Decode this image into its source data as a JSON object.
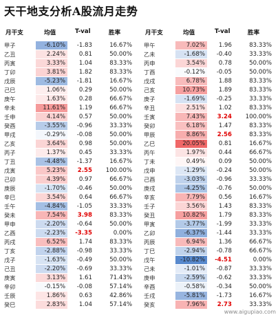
{
  "title": "天干地支分析A股流月走势",
  "headers": {
    "name": "月干支",
    "mean": "均值",
    "tval": "T-val",
    "win": "胜率"
  },
  "colors": {
    "pos_max": "#ef5a5a",
    "neg_max": "#4a7fc9",
    "highlight_text": "#e00000"
  },
  "watermark": "www.aigupiao.com",
  "chart_data": {
    "type": "table",
    "columns": [
      "月干支",
      "均值",
      "T-val",
      "胜率"
    ],
    "panels": [
      {
        "rows": [
          {
            "name": "甲子",
            "mean": "-6.10%",
            "mean_value": -6.1,
            "tval": "-1.83",
            "tval_value": -1.83,
            "win": "16.67%"
          },
          {
            "name": "乙丑",
            "mean": "2.24%",
            "mean_value": 2.24,
            "tval": "0.81",
            "tval_value": 0.81,
            "win": "50.00%"
          },
          {
            "name": "丙寅",
            "mean": "3.33%",
            "mean_value": 3.33,
            "tval": "1.04",
            "tval_value": 1.04,
            "win": "83.33%"
          },
          {
            "name": "丁卯",
            "mean": "3.81%",
            "mean_value": 3.81,
            "tval": "1.82",
            "tval_value": 1.82,
            "win": "83.33%"
          },
          {
            "name": "戊辰",
            "mean": "-5.23%",
            "mean_value": -5.23,
            "tval": "-1.81",
            "tval_value": -1.81,
            "win": "16.67%"
          },
          {
            "name": "己巳",
            "mean": "1.06%",
            "mean_value": 1.06,
            "tval": "0.29",
            "tval_value": 0.29,
            "win": "50.00%"
          },
          {
            "name": "庚午",
            "mean": "1.63%",
            "mean_value": 1.63,
            "tval": "0.28",
            "tval_value": 0.28,
            "win": "66.67%"
          },
          {
            "name": "辛未",
            "mean": "11.61%",
            "mean_value": 11.61,
            "tval": "1.19",
            "tval_value": 1.19,
            "win": "66.67%"
          },
          {
            "name": "壬申",
            "mean": "4.14%",
            "mean_value": 4.14,
            "tval": "0.57",
            "tval_value": 0.57,
            "win": "50.00%"
          },
          {
            "name": "癸酉",
            "mean": "-3.55%",
            "mean_value": -3.55,
            "tval": "-0.96",
            "tval_value": -0.96,
            "win": "33.33%"
          },
          {
            "name": "甲戌",
            "mean": "-0.29%",
            "mean_value": -0.29,
            "tval": "-0.08",
            "tval_value": -0.08,
            "win": "50.00%"
          },
          {
            "name": "乙亥",
            "mean": "3.64%",
            "mean_value": 3.64,
            "tval": "0.98",
            "tval_value": 0.98,
            "win": "50.00%"
          },
          {
            "name": "丙子",
            "mean": "1.37%",
            "mean_value": 1.37,
            "tval": "0.45",
            "tval_value": 0.45,
            "win": "33.33%"
          },
          {
            "name": "丁丑",
            "mean": "-4.48%",
            "mean_value": -4.48,
            "tval": "-1.37",
            "tval_value": -1.37,
            "win": "16.67%"
          },
          {
            "name": "戊寅",
            "mean": "5.23%",
            "mean_value": 5.23,
            "tval": "2.55",
            "tval_value": 2.55,
            "win": "100.00%"
          },
          {
            "name": "己卯",
            "mean": "4.39%",
            "mean_value": 4.39,
            "tval": "0.97",
            "tval_value": 0.97,
            "win": "66.67%"
          },
          {
            "name": "庚辰",
            "mean": "-1.70%",
            "mean_value": -1.7,
            "tval": "-0.46",
            "tval_value": -0.46,
            "win": "50.00%"
          },
          {
            "name": "辛巳",
            "mean": "3.54%",
            "mean_value": 3.54,
            "tval": "0.64",
            "tval_value": 0.64,
            "win": "66.67%"
          },
          {
            "name": "壬午",
            "mean": "-4.84%",
            "mean_value": -4.84,
            "tval": "-1.05",
            "tval_value": -1.05,
            "win": "33.33%"
          },
          {
            "name": "癸未",
            "mean": "7.54%",
            "mean_value": 7.54,
            "tval": "3.98",
            "tval_value": 3.98,
            "win": "83.33%"
          },
          {
            "name": "甲申",
            "mean": "-2.20%",
            "mean_value": -2.2,
            "tval": "-0.64",
            "tval_value": -0.64,
            "win": "50.00%"
          },
          {
            "name": "乙酉",
            "mean": "-2.23%",
            "mean_value": -2.23,
            "tval": "-3.35",
            "tval_value": -3.35,
            "win": "0.00%"
          },
          {
            "name": "丙戌",
            "mean": "6.52%",
            "mean_value": 6.52,
            "tval": "1.74",
            "tval_value": 1.74,
            "win": "83.33%"
          },
          {
            "name": "丁亥",
            "mean": "-2.88%",
            "mean_value": -2.88,
            "tval": "-0.98",
            "tval_value": -0.98,
            "win": "33.33%"
          },
          {
            "name": "戊子",
            "mean": "-1.63%",
            "mean_value": -1.63,
            "tval": "-0.49",
            "tval_value": -0.49,
            "win": "50.00%"
          },
          {
            "name": "己丑",
            "mean": "-2.20%",
            "mean_value": -2.2,
            "tval": "-0.69",
            "tval_value": -0.69,
            "win": "33.33%"
          },
          {
            "name": "庚寅",
            "mean": "3.13%",
            "mean_value": 3.13,
            "tval": "1.61",
            "tval_value": 1.61,
            "win": "71.43%"
          },
          {
            "name": "辛卯",
            "mean": "-0.15%",
            "mean_value": -0.15,
            "tval": "-0.08",
            "tval_value": -0.08,
            "win": "57.14%"
          },
          {
            "name": "壬辰",
            "mean": "1.86%",
            "mean_value": 1.86,
            "tval": "0.63",
            "tval_value": 0.63,
            "win": "42.86%"
          },
          {
            "name": "癸巳",
            "mean": "2.83%",
            "mean_value": 2.83,
            "tval": "1.04",
            "tval_value": 1.04,
            "win": "57.14%"
          }
        ]
      },
      {
        "rows": [
          {
            "name": "甲午",
            "mean": "7.02%",
            "mean_value": 7.02,
            "tval": "1.96",
            "tval_value": 1.96,
            "win": "83.33%"
          },
          {
            "name": "乙未",
            "mean": "-1.68%",
            "mean_value": -1.68,
            "tval": "-0.40",
            "tval_value": -0.4,
            "win": "33.33%"
          },
          {
            "name": "丙申",
            "mean": "3.54%",
            "mean_value": 3.54,
            "tval": "0.78",
            "tval_value": 0.78,
            "win": "50.00%"
          },
          {
            "name": "丁酉",
            "mean": "-0.12%",
            "mean_value": -0.12,
            "tval": "-0.05",
            "tval_value": -0.05,
            "win": "50.00%"
          },
          {
            "name": "戊戌",
            "mean": "6.78%",
            "mean_value": 6.78,
            "tval": "1.88",
            "tval_value": 1.88,
            "win": "83.33%"
          },
          {
            "name": "己亥",
            "mean": "10.73%",
            "mean_value": 10.73,
            "tval": "1.89",
            "tval_value": 1.89,
            "win": "83.33%"
          },
          {
            "name": "庚子",
            "mean": "-1.69%",
            "mean_value": -1.69,
            "tval": "-0.25",
            "tval_value": -0.25,
            "win": "33.33%"
          },
          {
            "name": "辛丑",
            "mean": "2.51%",
            "mean_value": 2.51,
            "tval": "1.02",
            "tval_value": 1.02,
            "win": "83.33%"
          },
          {
            "name": "壬寅",
            "mean": "7.43%",
            "mean_value": 7.43,
            "tval": "3.24",
            "tval_value": 3.24,
            "win": "100.00%"
          },
          {
            "name": "癸卯",
            "mean": "6.18%",
            "mean_value": 6.18,
            "tval": "1.47",
            "tval_value": 1.47,
            "win": "83.33%"
          },
          {
            "name": "甲辰",
            "mean": "8.86%",
            "mean_value": 8.86,
            "tval": "2.56",
            "tval_value": 2.56,
            "win": "83.33%"
          },
          {
            "name": "乙巳",
            "mean": "20.05%",
            "mean_value": 20.05,
            "tval": "0.81",
            "tval_value": 0.81,
            "win": "16.67%"
          },
          {
            "name": "丙午",
            "mean": "1.97%",
            "mean_value": 1.97,
            "tval": "0.44",
            "tval_value": 0.44,
            "win": "66.67%"
          },
          {
            "name": "丁未",
            "mean": "0.49%",
            "mean_value": 0.49,
            "tval": "0.09",
            "tval_value": 0.09,
            "win": "50.00%"
          },
          {
            "name": "戊申",
            "mean": "-1.29%",
            "mean_value": -1.29,
            "tval": "-0.24",
            "tval_value": -0.24,
            "win": "50.00%"
          },
          {
            "name": "己酉",
            "mean": "-3.03%",
            "mean_value": -3.03,
            "tval": "-0.96",
            "tval_value": -0.96,
            "win": "33.33%"
          },
          {
            "name": "庚戌",
            "mean": "-4.25%",
            "mean_value": -4.25,
            "tval": "-0.76",
            "tval_value": -0.76,
            "win": "50.00%"
          },
          {
            "name": "辛亥",
            "mean": "7.79%",
            "mean_value": 7.79,
            "tval": "0.56",
            "tval_value": 0.56,
            "win": "16.67%"
          },
          {
            "name": "壬子",
            "mean": "3.56%",
            "mean_value": 3.56,
            "tval": "1.43",
            "tval_value": 1.43,
            "win": "83.33%"
          },
          {
            "name": "癸丑",
            "mean": "10.82%",
            "mean_value": 10.82,
            "tval": "1.79",
            "tval_value": 1.79,
            "win": "83.33%"
          },
          {
            "name": "甲寅",
            "mean": "-3.77%",
            "mean_value": -3.77,
            "tval": "-1.99",
            "tval_value": -1.99,
            "win": "33.33%"
          },
          {
            "name": "乙卯",
            "mean": "-6.37%",
            "mean_value": -6.37,
            "tval": "-1.44",
            "tval_value": -1.44,
            "win": "33.33%"
          },
          {
            "name": "丙辰",
            "mean": "6.94%",
            "mean_value": 6.94,
            "tval": "1.36",
            "tval_value": 1.36,
            "win": "66.67%"
          },
          {
            "name": "丁巳",
            "mean": "-2.94%",
            "mean_value": -2.94,
            "tval": "-0.78",
            "tval_value": -0.78,
            "win": "66.67%"
          },
          {
            "name": "戊午",
            "mean": "-10.82%",
            "mean_value": -10.82,
            "tval": "-4.51",
            "tval_value": -4.51,
            "win": "0.00%"
          },
          {
            "name": "己未",
            "mean": "-1.01%",
            "mean_value": -1.01,
            "tval": "-0.87",
            "tval_value": -0.87,
            "win": "33.33%"
          },
          {
            "name": "庚申",
            "mean": "-2.59%",
            "mean_value": -2.59,
            "tval": "-0.62",
            "tval_value": -0.62,
            "win": "33.33%"
          },
          {
            "name": "辛酉",
            "mean": "-0.58%",
            "mean_value": -0.58,
            "tval": "-0.34",
            "tval_value": -0.34,
            "win": "50.00%"
          },
          {
            "name": "壬戌",
            "mean": "-5.81%",
            "mean_value": -5.81,
            "tval": "-1.73",
            "tval_value": -1.73,
            "win": "16.67%"
          },
          {
            "name": "癸亥",
            "mean": "7.96%",
            "mean_value": 7.96,
            "tval": "2.73",
            "tval_value": 2.73,
            "win": "33.33%"
          }
        ]
      }
    ]
  }
}
